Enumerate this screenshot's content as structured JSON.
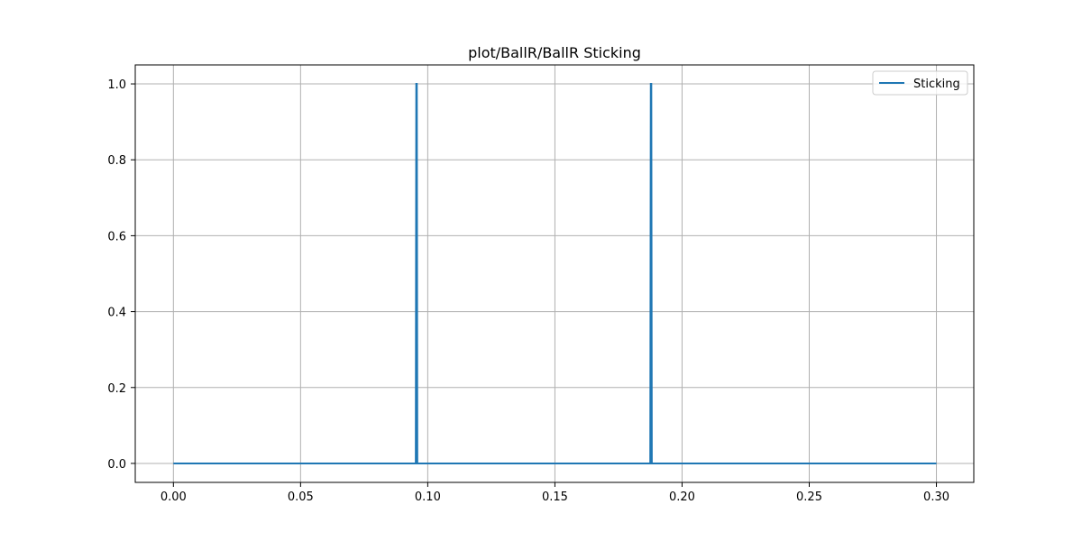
{
  "chart_data": {
    "type": "line",
    "title": "plot/BallR/BallR Sticking",
    "xlabel": "",
    "ylabel": "",
    "xlim": [
      -0.015,
      0.3147
    ],
    "ylim": [
      -0.05,
      1.05
    ],
    "x_ticks": [
      0.0,
      0.05,
      0.1,
      0.15,
      0.2,
      0.25,
      0.3
    ],
    "x_tick_labels": [
      "0.00",
      "0.05",
      "0.10",
      "0.15",
      "0.20",
      "0.25",
      "0.30"
    ],
    "y_ticks": [
      0.0,
      0.2,
      0.4,
      0.6,
      0.8,
      1.0
    ],
    "y_tick_labels": [
      "0.0",
      "0.2",
      "0.4",
      "0.6",
      "0.8",
      "1.0"
    ],
    "grid": true,
    "legend_position": "top-right",
    "series": [
      {
        "name": "Sticking",
        "color": "#1f77b4",
        "x": [
          0.0,
          0.0953,
          0.0955,
          0.0957,
          0.0959,
          0.1875,
          0.1877,
          0.1879,
          0.1881,
          0.3
        ],
        "y": [
          0,
          0,
          1,
          1,
          0,
          0,
          1,
          1,
          0,
          0
        ]
      }
    ]
  }
}
